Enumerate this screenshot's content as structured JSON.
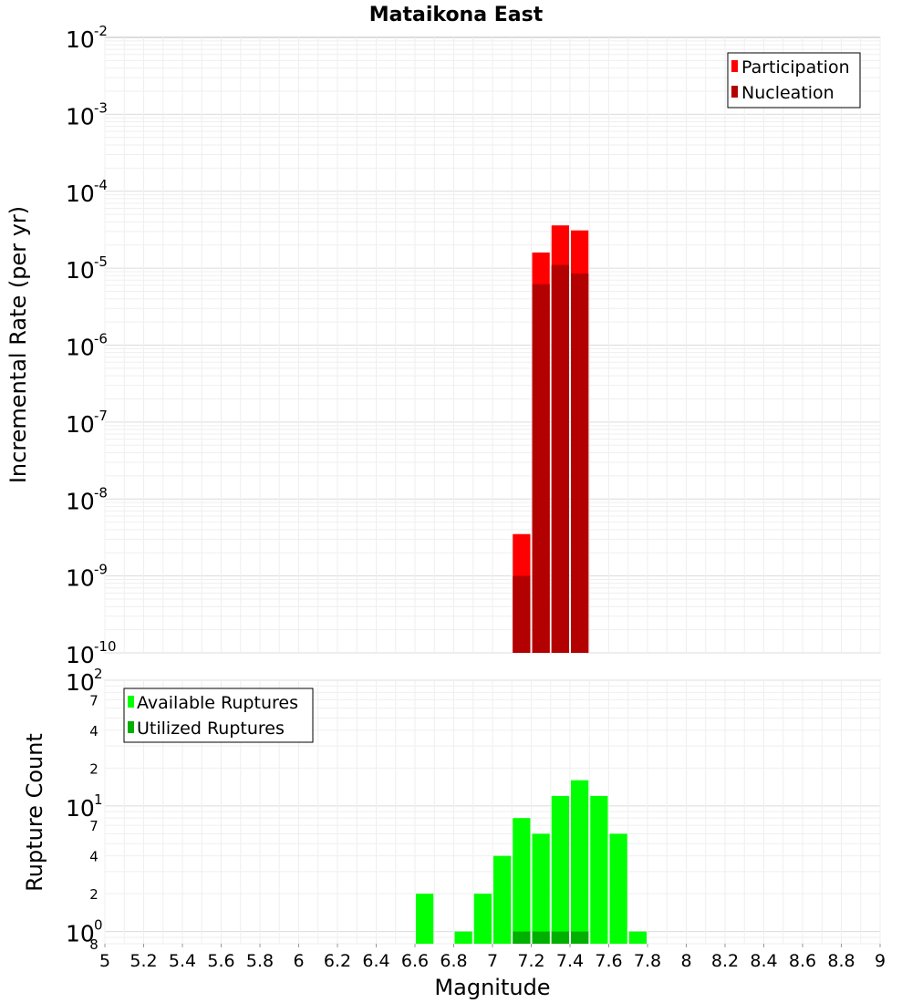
{
  "figure": {
    "title": "Mataikona East"
  },
  "chart_data": [
    {
      "type": "bar",
      "panel": "top",
      "ylabel": "Incremental Rate (per yr)",
      "xlabel": "",
      "yscale": "log",
      "ylim": [
        1e-10,
        0.01
      ],
      "xlim": [
        5,
        9
      ],
      "bin_width": 0.1,
      "grid": true,
      "legend_position": "top-right",
      "ytick_labels": [
        {
          "value": 0.01,
          "base": "10",
          "exp": "-2"
        },
        {
          "value": 0.001,
          "base": "10",
          "exp": "-3"
        },
        {
          "value": 0.0001,
          "base": "10",
          "exp": "-4"
        },
        {
          "value": 1e-05,
          "base": "10",
          "exp": "-5"
        },
        {
          "value": 1e-06,
          "base": "10",
          "exp": "-6"
        },
        {
          "value": 1e-07,
          "base": "10",
          "exp": "-7"
        },
        {
          "value": 1e-08,
          "base": "10",
          "exp": "-8"
        },
        {
          "value": 1e-09,
          "base": "10",
          "exp": "-9"
        },
        {
          "value": 1e-10,
          "base": "10",
          "exp": "-10"
        }
      ],
      "series": [
        {
          "name": "Participation",
          "color": "#ff0000",
          "x": [
            7.15,
            7.25,
            7.35,
            7.45
          ],
          "values": [
            3.5e-09,
            1.6e-05,
            3.6e-05,
            3.1e-05
          ]
        },
        {
          "name": "Nucleation",
          "color": "#b30000",
          "x": [
            7.15,
            7.25,
            7.35,
            7.45
          ],
          "values": [
            1e-09,
            6.2e-06,
            1.1e-05,
            8.5e-06
          ]
        }
      ]
    },
    {
      "type": "bar",
      "panel": "bottom",
      "ylabel": "Rupture Count",
      "xlabel": "Magnitude",
      "yscale": "log",
      "ylim": [
        0.8,
        100
      ],
      "xlim": [
        5,
        9
      ],
      "bin_width": 0.1,
      "grid": true,
      "legend_position": "top-left",
      "ytick_labels": [
        {
          "value": 100,
          "base": "10",
          "exp": "2"
        },
        {
          "value": 10,
          "base": "10",
          "exp": "1"
        },
        {
          "value": 1,
          "base": "10",
          "exp": "0"
        }
      ],
      "minor_tick_labels": [
        {
          "value": 70,
          "label": "7"
        },
        {
          "value": 40,
          "label": "4"
        },
        {
          "value": 20,
          "label": "2"
        },
        {
          "value": 7,
          "label": "7"
        },
        {
          "value": 4,
          "label": "4"
        },
        {
          "value": 2,
          "label": "2"
        },
        {
          "value": 0.8,
          "label": "8"
        }
      ],
      "series": [
        {
          "name": "Available Ruptures",
          "color": "#00ff00",
          "x": [
            6.65,
            6.85,
            6.95,
            7.05,
            7.15,
            7.25,
            7.35,
            7.45,
            7.55,
            7.65,
            7.75
          ],
          "values": [
            2,
            1,
            2,
            4,
            8,
            6,
            12,
            16,
            12,
            6,
            1
          ]
        },
        {
          "name": "Utilized Ruptures",
          "color": "#00b000",
          "x": [
            7.15,
            7.25,
            7.35,
            7.45
          ],
          "values": [
            1,
            1,
            1,
            1
          ]
        }
      ]
    }
  ],
  "x_axis": {
    "label": "Magnitude",
    "tick_values": [
      5,
      5.2,
      5.4,
      5.6,
      5.8,
      6,
      6.2,
      6.4,
      6.6,
      6.8,
      7,
      7.2,
      7.4,
      7.6,
      7.8,
      8,
      8.2,
      8.4,
      8.6,
      8.8,
      9
    ],
    "tick_labels": [
      "5",
      "5.2",
      "5.4",
      "5.6",
      "5.8",
      "6",
      "6.2",
      "6.4",
      "6.6",
      "6.8",
      "7",
      "7.2",
      "7.4",
      "7.6",
      "7.8",
      "8",
      "8.2",
      "8.4",
      "8.6",
      "8.8",
      "9"
    ]
  }
}
